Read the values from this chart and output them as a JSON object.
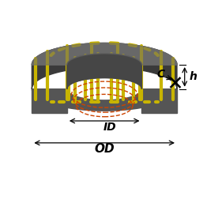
{
  "bg_color": "#ffffff",
  "toroid_color_dark": "#3a3a3a",
  "toroid_color_mid": "#555555",
  "toroid_color_light": "#686868",
  "toroid_inner_wall": "#4a4a4a",
  "wire_color": "#c8b400",
  "dashed_color": "#cc4400",
  "text_color": "#000000",
  "OD_label": "OD",
  "ID_label": "ID",
  "h_label": "h",
  "C_label": "C",
  "fig_width": 2.81,
  "fig_height": 2.81,
  "dpi": 100
}
